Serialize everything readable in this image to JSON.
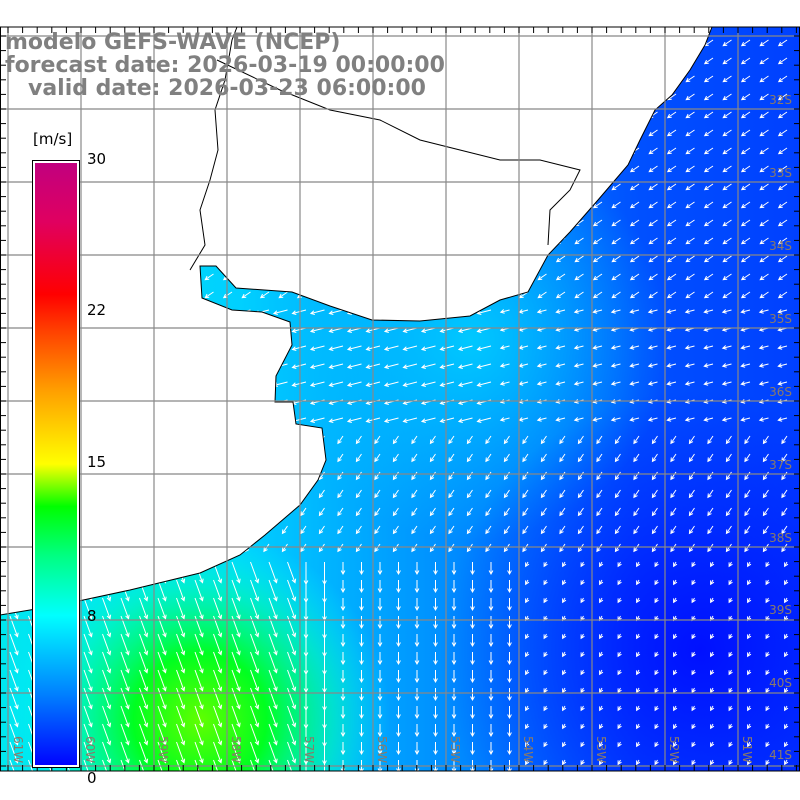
{
  "title": {
    "model": "modelo GEFS-WAVE (NCEP)",
    "forecast": "forecast date: 2026-03-19 00:00:00",
    "valid": "   valid date: 2026-03-23 06:00:00"
  },
  "colorbar": {
    "unit": "[m/s]",
    "labels": [
      "30",
      "22",
      "15",
      "8",
      "0"
    ],
    "colors": [
      "#0000ff",
      "#00ffff",
      "#00ff00",
      "#ffff00",
      "#ff0000",
      "#c00080"
    ]
  },
  "lat_labels": [
    "32S",
    "33S",
    "34S",
    "35S",
    "36S",
    "37S",
    "38S",
    "39S",
    "40S",
    "41S"
  ],
  "lon_labels": [
    "61W",
    "60W",
    "59W",
    "58W",
    "57W",
    "56W",
    "55W",
    "54W",
    "53W",
    "52W",
    "51W"
  ]
}
